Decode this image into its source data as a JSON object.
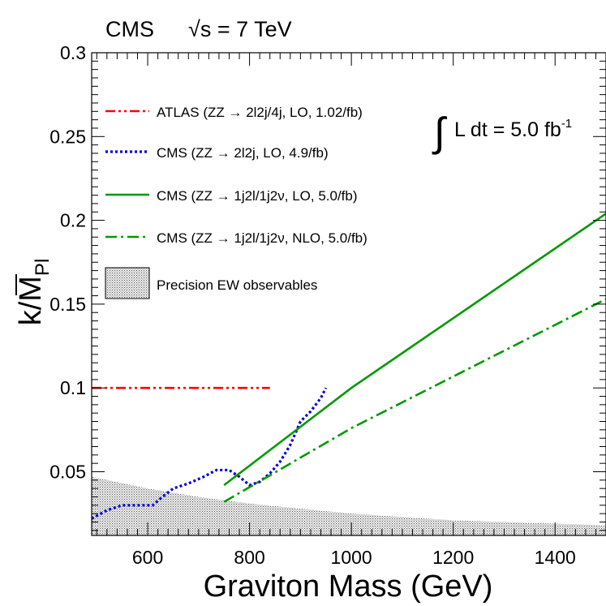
{
  "header": {
    "experiment": "CMS",
    "energy": "√s = 7 TeV"
  },
  "chart_data": {
    "type": "line",
    "xlabel": "Graviton Mass (GeV)",
    "ylabel": "k/M̄Pl",
    "xlim": [
      490,
      1500
    ],
    "ylim": [
      0.012,
      0.3
    ],
    "xticks": [
      600,
      800,
      1000,
      1200,
      1400
    ],
    "yticks": [
      0.05,
      0.1,
      0.15,
      0.2,
      0.25,
      0.3
    ],
    "ytick_labels": [
      "0.05",
      "0.1",
      "0.15",
      "0.2",
      "0.25",
      "0.3"
    ],
    "grid": false,
    "legend_position": "top-left",
    "lumi_annotation": {
      "integral": "∫",
      "text": "L dt = 5.0 fb",
      "sup": "-1"
    },
    "series": [
      {
        "name": "ATLAS (ZZ → 2l2j/4j, LO, 1.02/fb)",
        "color": "#ff0000",
        "dash": "dash-dot-dot",
        "x": [
          490,
          840
        ],
        "y": [
          0.1,
          0.1
        ]
      },
      {
        "name": "CMS (ZZ → 2l2j, LO, 4.9/fb)",
        "color": "#0000dd",
        "dash": "dotted",
        "x": [
          490,
          520,
          550,
          580,
          610,
          625,
          650,
          680,
          710,
          735,
          760,
          780,
          800,
          820,
          840,
          860,
          880,
          900,
          920,
          940,
          950
        ],
        "y": [
          0.022,
          0.027,
          0.03,
          0.03,
          0.03,
          0.034,
          0.04,
          0.043,
          0.047,
          0.051,
          0.051,
          0.047,
          0.042,
          0.044,
          0.049,
          0.056,
          0.066,
          0.08,
          0.086,
          0.094,
          0.1
        ]
      },
      {
        "name": "CMS (ZZ → 1j2l/1j2ν, LO, 5.0/fb)",
        "color": "#009900",
        "dash": "solid",
        "x": [
          750,
          1000,
          1500
        ],
        "y": [
          0.042,
          0.1,
          0.204
        ]
      },
      {
        "name": "CMS (ZZ → 1j2l/1j2ν, NLO, 5.0/fb)",
        "color": "#009900",
        "dash": "dash-dot",
        "x": [
          750,
          1000,
          1500
        ],
        "y": [
          0.032,
          0.076,
          0.153
        ]
      }
    ],
    "excluded_region": {
      "name": "Precision EW observables",
      "x": [
        490,
        600,
        700,
        800,
        900,
        1000,
        1100,
        1200,
        1300,
        1400,
        1500
      ],
      "y_upper": [
        0.047,
        0.04,
        0.035,
        0.031,
        0.028,
        0.025,
        0.023,
        0.021,
        0.02,
        0.019,
        0.018
      ]
    }
  }
}
